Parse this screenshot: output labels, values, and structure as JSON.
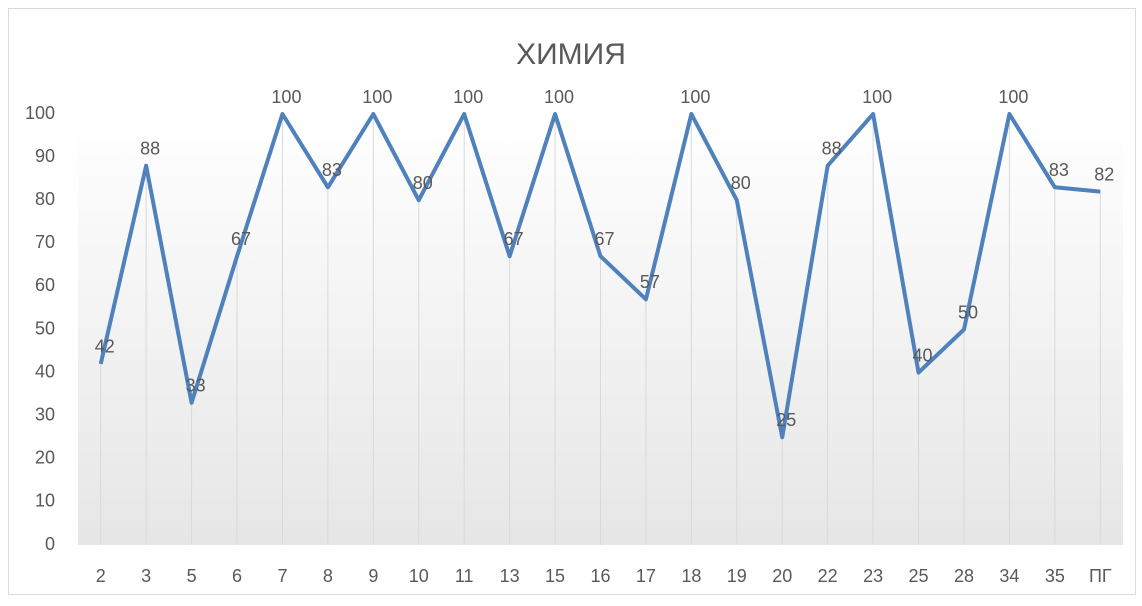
{
  "chart_data": {
    "type": "line",
    "title": "ХИМИЯ",
    "categories": [
      "2",
      "3",
      "5",
      "6",
      "7",
      "8",
      "9",
      "10",
      "11",
      "13",
      "15",
      "16",
      "17",
      "18",
      "19",
      "20",
      "22",
      "23",
      "25",
      "28",
      "34",
      "35",
      "ПГ"
    ],
    "series": [
      {
        "color": "#4f81bd",
        "values": [
          42,
          88,
          33,
          67,
          100,
          83,
          100,
          80,
          100,
          67,
          100,
          67,
          57,
          100,
          80,
          25,
          88,
          100,
          40,
          50,
          100,
          83,
          82
        ]
      }
    ],
    "ylim": [
      0,
      100
    ],
    "yticks": [
      0,
      10,
      20,
      30,
      40,
      50,
      60,
      70,
      80,
      90,
      100
    ],
    "grid": false,
    "drop_lines": true,
    "data_labels": true
  }
}
